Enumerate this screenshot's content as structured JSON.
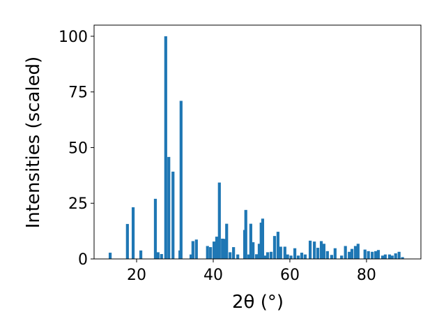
{
  "chart_data": {
    "type": "bar",
    "xlabel": "2θ (°)",
    "ylabel": "Intensities (scaled)",
    "x": [
      13.1,
      17.6,
      19.1,
      21.1,
      24.9,
      25.6,
      26.5,
      27.6,
      28.4,
      29.5,
      31.3,
      31.6,
      34.2,
      34.7,
      35.6,
      38.5,
      39.3,
      40.2,
      40.9,
      41.6,
      42.4,
      42.8,
      43.5,
      44.4,
      45.3,
      46.4,
      48.2,
      48.5,
      49.3,
      49.8,
      50.4,
      51.3,
      52.0,
      52.5,
      52.9,
      53.6,
      54.2,
      55.1,
      56.0,
      56.9,
      57.6,
      58.7,
      59.4,
      60.3,
      61.3,
      62.2,
      63.1,
      64.0,
      65.3,
      66.4,
      67.3,
      68.2,
      68.9,
      69.8,
      70.9,
      71.8,
      73.5,
      74.5,
      75.5,
      76.2,
      77.1,
      77.8,
      79.6,
      80.5,
      81.5,
      82.4,
      83.1,
      84.2,
      84.9,
      86.0,
      86.7,
      87.6,
      88.5,
      89.4
    ],
    "values": [
      2.8,
      15.7,
      23.2,
      3.8,
      27,
      3,
      2.2,
      100,
      45.8,
      39.2,
      3.8,
      71,
      2,
      8,
      8.7,
      5.8,
      5.3,
      7.8,
      10,
      34.3,
      9.1,
      9,
      15.8,
      3,
      5.3,
      2,
      13,
      22,
      2,
      15.8,
      7.5,
      2.1,
      6.8,
      16.3,
      18.1,
      1.5,
      3,
      3.2,
      10.3,
      12.2,
      5.5,
      5.5,
      2,
      1.5,
      4.8,
      1.5,
      2.8,
      2,
      8.2,
      7.8,
      5,
      8,
      6.8,
      3.5,
      1.8,
      4.8,
      1.5,
      5.8,
      3.2,
      4.5,
      5.8,
      6.8,
      4.2,
      3.5,
      3.2,
      3.5,
      4,
      1.5,
      2,
      2,
      1.5,
      2.5,
      3.2,
      0.8
    ],
    "color": "#1f77b4",
    "xlim": [
      8.9,
      94.2
    ],
    "xticks": [
      20,
      40,
      60,
      80
    ],
    "ylim": [
      0,
      105
    ],
    "yticks": [
      0,
      25,
      50,
      75,
      100
    ]
  }
}
